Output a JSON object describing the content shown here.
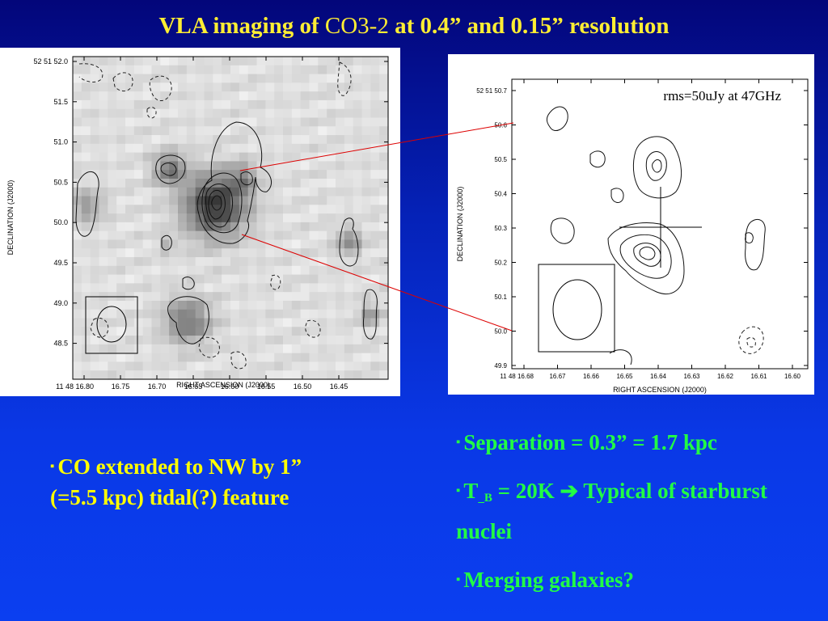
{
  "title": {
    "part1": "VLA imaging of ",
    "part2": "CO3-2",
    "part3": " at 0.4” and 0.15” resolution"
  },
  "left_map": {
    "dec_ticks": [
      "52 51 52.0",
      "51.5",
      "51.0",
      "50.5",
      "50.0",
      "49.5",
      "49.0",
      "48.5"
    ],
    "ra_ticks": [
      "11 48 16.80",
      "16.75",
      "16.70",
      "16.65",
      "16.60",
      "16.55",
      "16.50",
      "16.45"
    ],
    "xlabel": "RIGHT ASCENSION (J2000)",
    "ylabel": "DECLINATION (J2000)"
  },
  "right_map": {
    "dec_ticks": [
      "52 51 50.7",
      "50.6",
      "50.5",
      "50.4",
      "50.3",
      "50.2",
      "50.1",
      "50.0",
      "49.9"
    ],
    "ra_ticks": [
      "11 48 16.68",
      "16.67",
      "16.66",
      "16.65",
      "16.64",
      "16.63",
      "16.62",
      "16.61",
      "16.60"
    ],
    "xlabel": "RIGHT ASCENSION (J2000)",
    "ylabel": "DECLINATION (J2000)",
    "rms_note": "rms=50uJy at 47GHz"
  },
  "bullets_left": {
    "mark": "▪",
    "line1": "CO extended to NW by 1”",
    "line2": "(=5.5 kpc)  tidal(?)  feature"
  },
  "bullets_right": {
    "mark": "▪",
    "item1": "Separation = 0.3” = 1.7 kpc",
    "item2_a": "T",
    "item2_sub": "_B",
    "item2_b": " = 20K ",
    "item2_arrow": "➔",
    "item2_c": " Typical of starburst nuclei",
    "item3": "Merging galaxies?"
  },
  "colors": {
    "title": "#ffee33",
    "bullets_left": "#ffff00",
    "bullets_right": "#22ff44",
    "connector": "#dd0000"
  }
}
